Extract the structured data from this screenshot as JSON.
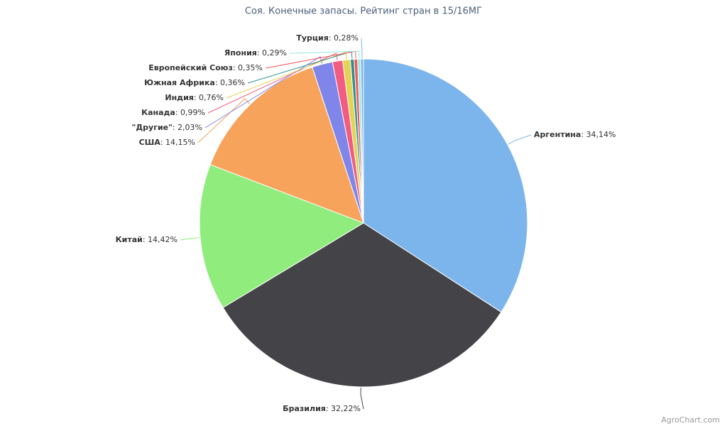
{
  "chart_data": {
    "type": "pie",
    "title": "Соя. Конечные запасы. Рейтинг стран в 15/16МГ",
    "categories": [
      "Аргентина",
      "Бразилия",
      "Китай",
      "США",
      "\"Другие\"",
      "Канада",
      "Индия",
      "Южная Африка",
      "Европейский Союз",
      "Япония",
      "Турция"
    ],
    "values": [
      34.14,
      32.22,
      14.42,
      14.15,
      2.03,
      0.99,
      0.76,
      0.36,
      0.35,
      0.29,
      0.28
    ],
    "value_labels": [
      "34,14%",
      "32,22%",
      "14,42%",
      "14,15%",
      "2,03%",
      "0,99%",
      "0,76%",
      "0,36%",
      "0,35%",
      "0,29%",
      "0,28%"
    ],
    "label_separator": ": ",
    "colors": [
      "#7cb5ec",
      "#434348",
      "#90ed7d",
      "#f7a35c",
      "#8085e9",
      "#f15c80",
      "#e4d354",
      "#2b908f",
      "#f45b5b",
      "#91e8e1",
      "#7cb5ec"
    ],
    "credit": "AgroChart.com"
  }
}
